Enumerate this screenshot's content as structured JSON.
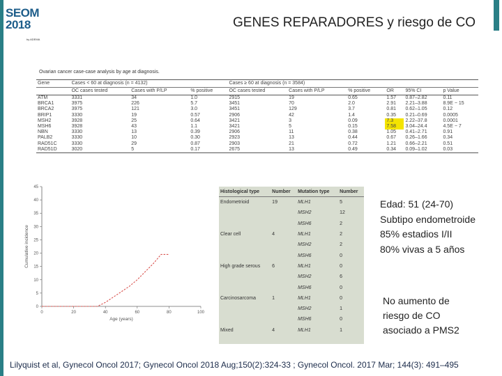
{
  "logo": {
    "line1": "SEOM",
    "line2": "2018",
    "line3": "by ADEMA"
  },
  "slide": {
    "title": "GENES REPARADORES y riesgo de CO"
  },
  "table1": {
    "caption": "Ovarian cancer case-case analysis by age at diagnosis.",
    "group_left": "Cases < 60 at diagnosis (n = 4132)",
    "group_right": "Cases ≥ 60 at diagnosis (n = 3584)",
    "headers": [
      "Gene",
      "OC cases tested",
      "Cases with P/LP",
      "% positive",
      "OC cases tested",
      "Cases with P/LP",
      "% positive",
      "OR",
      "95% CI",
      "p Value"
    ],
    "rows": [
      [
        "ATM",
        "3331",
        "34",
        "1.0",
        "2915",
        "19",
        "0.65",
        "1.57",
        "0.87–2.82",
        "0.11"
      ],
      [
        "BRCA1",
        "3975",
        "226",
        "5.7",
        "3451",
        "70",
        "2.0",
        "2.91",
        "2.21–3.88",
        "8.9E − 15"
      ],
      [
        "BRCA2",
        "3975",
        "121",
        "3.0",
        "3451",
        "129",
        "3.7",
        "0.81",
        "0.62–1.05",
        "0.12"
      ],
      [
        "BRIP1",
        "3330",
        "19",
        "0.57",
        "2906",
        "42",
        "1.4",
        "0.35",
        "0.21–0.69",
        "0.0005"
      ],
      [
        "MSH2",
        "3928",
        "25",
        "0.64",
        "3421",
        "3",
        "0.09",
        "7.3",
        "2.22–37.8",
        "0.0001"
      ],
      [
        "MSH6",
        "3928",
        "43",
        "1.1",
        "3421",
        "5",
        "0.15",
        "7.58",
        "3.04–24.4",
        "4.5E − 7"
      ],
      [
        "NBN",
        "3330",
        "13",
        "0.39",
        "2906",
        "11",
        "0.38",
        "1.05",
        "0.41–2.71",
        "0.91"
      ],
      [
        "PALB2",
        "3330",
        "10",
        "0.30",
        "2923",
        "13",
        "0.44",
        "0.67",
        "0.26–1.66",
        "0.34"
      ],
      [
        "RAD51C",
        "3330",
        "29",
        "0.87",
        "2903",
        "21",
        "0.72",
        "1.21",
        "0.66–2.21",
        "0.51"
      ],
      [
        "RAD51D",
        "3020",
        "5",
        "0.17",
        "2675",
        "13",
        "0.49",
        "0.34",
        "0.09–1.02",
        "0.03"
      ]
    ]
  },
  "chart_data": {
    "type": "line",
    "title": "",
    "xlabel": "Age (years)",
    "ylabel": "Cumulative incidence",
    "xlim": [
      0,
      100
    ],
    "ylim": [
      0,
      45
    ],
    "x_ticks": [
      0,
      20,
      40,
      60,
      80,
      100
    ],
    "y_ticks": [
      0,
      5,
      10,
      15,
      20,
      25,
      30,
      35,
      40,
      45
    ],
    "series": [
      {
        "x": [
          0,
          35,
          40,
          45,
          50,
          55,
          60,
          65,
          70,
          75,
          80
        ],
        "y": [
          0,
          0,
          1.5,
          3.5,
          5.5,
          7.5,
          10,
          13,
          16,
          19.5,
          19.5
        ]
      }
    ]
  },
  "histology_table": {
    "headers": [
      "Histological type",
      "Number",
      "Mutation type",
      "Number"
    ],
    "rows": [
      [
        "Endometrioid",
        "19",
        "MLH1",
        "5"
      ],
      [
        "",
        "",
        "MSH2",
        "12"
      ],
      [
        "",
        "",
        "MSH6",
        "2"
      ],
      [
        "Clear cell",
        "4",
        "MLH1",
        "2"
      ],
      [
        "",
        "",
        "MSH2",
        "2"
      ],
      [
        "",
        "",
        "MSH6",
        "0"
      ],
      [
        "High grade serous",
        "6",
        "MLH1",
        "0"
      ],
      [
        "",
        "",
        "MSH2",
        "6"
      ],
      [
        "",
        "",
        "MSH6",
        "0"
      ],
      [
        "Carcinosarcoma",
        "1",
        "MLH1",
        "0"
      ],
      [
        "",
        "",
        "MSH2",
        "1"
      ],
      [
        "",
        "",
        "MSH6",
        "0"
      ],
      [
        "Mixed",
        "4",
        "MLH1",
        "1"
      ]
    ]
  },
  "summary": {
    "lines": [
      "Edad: 51 (24-70)",
      "Subtipo endometroide",
      "85% estadios I/II",
      "80% vivas a 5 años"
    ],
    "note_lines": [
      "No  aumento de",
      "riesgo de CO",
      "asociado a PMS2"
    ]
  },
  "reference": "Lilyquist et al, Gynecol Oncol 2017; Gynecol Oncol 2018 Aug;150(2):324-33 ; Gynecol Oncol. 2017 Mar; 144(3): 491–495",
  "colors": {
    "accent": "#2a7f86",
    "highlight": "#f4e400",
    "curve": "#d9534f"
  }
}
